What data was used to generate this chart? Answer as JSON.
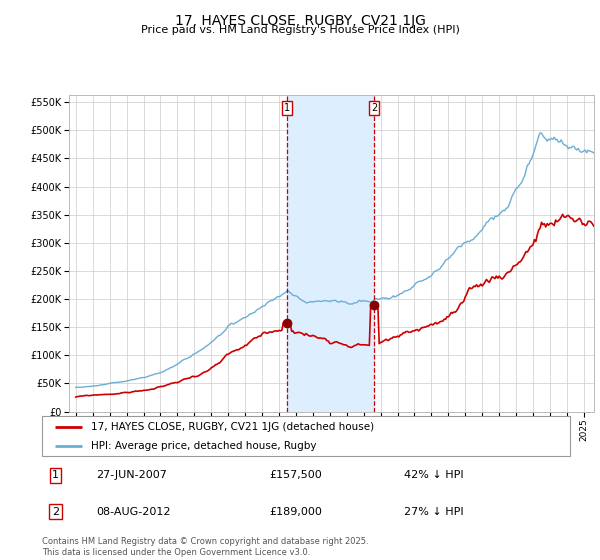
{
  "title": "17, HAYES CLOSE, RUGBY, CV21 1JG",
  "subtitle": "Price paid vs. HM Land Registry's House Price Index (HPI)",
  "legend_line1": "17, HAYES CLOSE, RUGBY, CV21 1JG (detached house)",
  "legend_line2": "HPI: Average price, detached house, Rugby",
  "footer": "Contains HM Land Registry data © Crown copyright and database right 2025.\nThis data is licensed under the Open Government Licence v3.0.",
  "sale1_date": "27-JUN-2007",
  "sale1_price": "£157,500",
  "sale1_hpi": "42% ↓ HPI",
  "sale1_x": 2007.49,
  "sale1_y": 157500,
  "sale2_date": "08-AUG-2012",
  "sale2_price": "£189,000",
  "sale2_hpi": "27% ↓ HPI",
  "sale2_x": 2012.61,
  "sale2_y": 189000,
  "hpi_color": "#6baed6",
  "price_color": "#cc0000",
  "marker_color": "#8b0000",
  "shaded_color": "#ddeeff",
  "dashed_color": "#cc0000",
  "ylim": [
    0,
    562500
  ],
  "yticks": [
    0,
    50000,
    100000,
    150000,
    200000,
    250000,
    300000,
    350000,
    400000,
    450000,
    500000,
    550000
  ],
  "xlim_left": 1994.6,
  "xlim_right": 2025.6,
  "background_color": "#ffffff",
  "grid_color": "#cccccc"
}
